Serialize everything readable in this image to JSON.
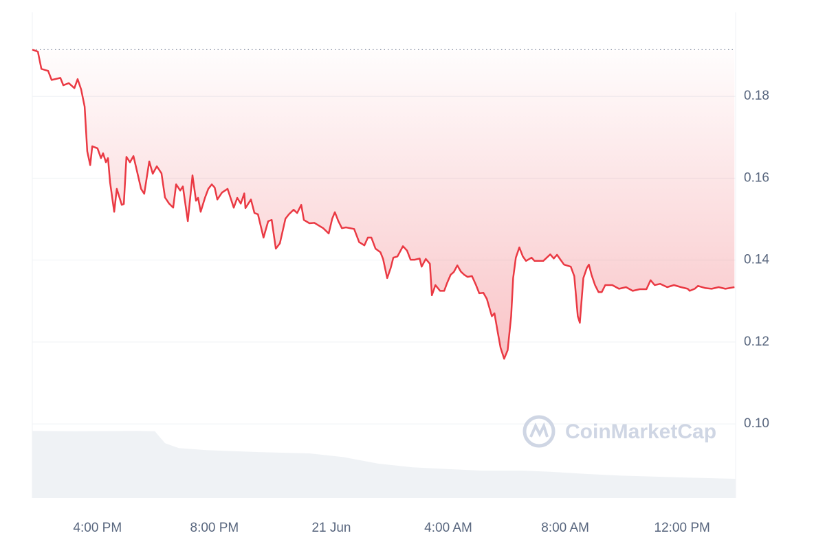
{
  "chart_data": {
    "type": "line",
    "watermark": "CoinMarketCap",
    "reference": 0.1914,
    "xlim": [
      13.77,
      37.83
    ],
    "xticks": [
      {
        "value": 16,
        "label": "4:00 PM"
      },
      {
        "value": 20,
        "label": "8:00 PM"
      },
      {
        "value": 24,
        "label": "21 Jun"
      },
      {
        "value": 28,
        "label": "4:00 AM"
      },
      {
        "value": 32,
        "label": "8:00 AM"
      },
      {
        "value": 36,
        "label": "12:00 PM"
      }
    ],
    "ylim": [
      0.0819,
      0.2005
    ],
    "yticks": [
      {
        "value": 0.1,
        "label": "0.10"
      },
      0.12,
      0.14,
      0.16,
      0.18
    ],
    "grid": true,
    "series": [
      {
        "name": "Price",
        "color": "#ea3943",
        "x": [
          13.77,
          13.96,
          14.08,
          14.31,
          14.43,
          14.73,
          14.83,
          15.02,
          15.21,
          15.32,
          15.44,
          15.56,
          15.65,
          15.75,
          15.82,
          16.0,
          16.12,
          16.19,
          16.29,
          16.36,
          16.43,
          16.57,
          16.66,
          16.83,
          16.9,
          16.99,
          17.11,
          17.23,
          17.32,
          17.49,
          17.6,
          17.77,
          17.89,
          18.03,
          18.19,
          18.31,
          18.45,
          18.59,
          18.69,
          18.83,
          18.92,
          19.09,
          19.25,
          19.37,
          19.44,
          19.53,
          19.68,
          19.79,
          19.91,
          20.01,
          20.1,
          20.26,
          20.45,
          20.66,
          20.78,
          20.9,
          21.02,
          21.06,
          21.25,
          21.37,
          21.49,
          21.68,
          21.84,
          21.96,
          22.1,
          22.24,
          22.43,
          22.55,
          22.71,
          22.83,
          22.97,
          23.06,
          23.25,
          23.42,
          23.72,
          23.91,
          24.03,
          24.12,
          24.24,
          24.36,
          24.5,
          24.78,
          24.95,
          25.13,
          25.25,
          25.37,
          25.51,
          25.68,
          25.77,
          25.91,
          26.03,
          26.12,
          26.26,
          26.45,
          26.59,
          26.71,
          26.85,
          27.02,
          27.09,
          27.23,
          27.37,
          27.44,
          27.56,
          27.72,
          27.86,
          27.96,
          28.08,
          28.19,
          28.31,
          28.43,
          28.55,
          28.66,
          28.81,
          28.95,
          29.06,
          29.2,
          29.32,
          29.49,
          29.58,
          29.7,
          29.79,
          29.91,
          30.03,
          30.15,
          30.22,
          30.31,
          30.43,
          30.55,
          30.66,
          30.85,
          30.95,
          31.25,
          31.49,
          31.61,
          31.72,
          31.84,
          31.96,
          32.19,
          32.31,
          32.43,
          32.5,
          32.62,
          32.74,
          32.81,
          32.9,
          33.02,
          33.14,
          33.25,
          33.37,
          33.61,
          33.84,
          34.08,
          34.31,
          34.55,
          34.78,
          34.92,
          35.06,
          35.25,
          35.49,
          35.72,
          35.96,
          36.19,
          36.26,
          36.43,
          36.54,
          36.78,
          37.01,
          37.25,
          37.48,
          37.79
        ],
        "values": [
          0.1914,
          0.1909,
          0.1867,
          0.1862,
          0.184,
          0.1845,
          0.1827,
          0.1832,
          0.182,
          0.1842,
          0.1817,
          0.1775,
          0.1666,
          0.1632,
          0.1678,
          0.1673,
          0.1649,
          0.1661,
          0.1639,
          0.1649,
          0.159,
          0.1518,
          0.1574,
          0.1535,
          0.1537,
          0.1652,
          0.1639,
          0.1654,
          0.1627,
          0.1574,
          0.1562,
          0.1641,
          0.1611,
          0.1629,
          0.1612,
          0.1553,
          0.1538,
          0.1528,
          0.1585,
          0.157,
          0.158,
          0.1495,
          0.1607,
          0.1545,
          0.1552,
          0.1518,
          0.1553,
          0.1574,
          0.1585,
          0.1577,
          0.1548,
          0.1565,
          0.1574,
          0.1528,
          0.1552,
          0.1538,
          0.1563,
          0.1527,
          0.1548,
          0.1515,
          0.1512,
          0.1455,
          0.1495,
          0.1498,
          0.1428,
          0.1441,
          0.1501,
          0.1512,
          0.1523,
          0.1515,
          0.1535,
          0.1498,
          0.149,
          0.1491,
          0.1478,
          0.1465,
          0.1501,
          0.1517,
          0.1495,
          0.1478,
          0.148,
          0.1476,
          0.1444,
          0.1436,
          0.1455,
          0.1455,
          0.1428,
          0.1419,
          0.1403,
          0.1356,
          0.1381,
          0.1406,
          0.1409,
          0.1434,
          0.1423,
          0.1401,
          0.1401,
          0.1404,
          0.1384,
          0.1403,
          0.1391,
          0.1314,
          0.1339,
          0.1325,
          0.1325,
          0.1344,
          0.1364,
          0.1371,
          0.1387,
          0.1372,
          0.1364,
          0.1359,
          0.1361,
          0.1339,
          0.1319,
          0.132,
          0.1305,
          0.1263,
          0.127,
          0.1221,
          0.1186,
          0.1159,
          0.118,
          0.1263,
          0.1356,
          0.1406,
          0.1431,
          0.1409,
          0.1398,
          0.1406,
          0.1398,
          0.1398,
          0.1414,
          0.1404,
          0.1413,
          0.1401,
          0.1389,
          0.1384,
          0.1361,
          0.1263,
          0.1247,
          0.1356,
          0.1381,
          0.1389,
          0.1364,
          0.1339,
          0.1322,
          0.1322,
          0.1339,
          0.1339,
          0.133,
          0.1334,
          0.1325,
          0.1329,
          0.1329,
          0.1351,
          0.1339,
          0.1342,
          0.1334,
          0.1339,
          0.1334,
          0.133,
          0.1325,
          0.133,
          0.1337,
          0.1332,
          0.133,
          0.1334,
          0.133,
          0.1334
        ]
      },
      {
        "name": "Volume",
        "color": "#eff2f5",
        "x": [
          13.77,
          15.25,
          17.37,
          17.96,
          18.31,
          18.78,
          19.72,
          21.6,
          23.25,
          24.42,
          25.6,
          26.78,
          29.14,
          30.55,
          31.49,
          32.66,
          33.84,
          36.19,
          37.83
        ],
        "values": [
          0.0983,
          0.0982,
          0.0983,
          0.0982,
          0.0953,
          0.0941,
          0.0936,
          0.0931,
          0.0928,
          0.0919,
          0.0903,
          0.0894,
          0.0886,
          0.0886,
          0.0883,
          0.0878,
          0.0874,
          0.0869,
          0.0866
        ]
      }
    ]
  }
}
